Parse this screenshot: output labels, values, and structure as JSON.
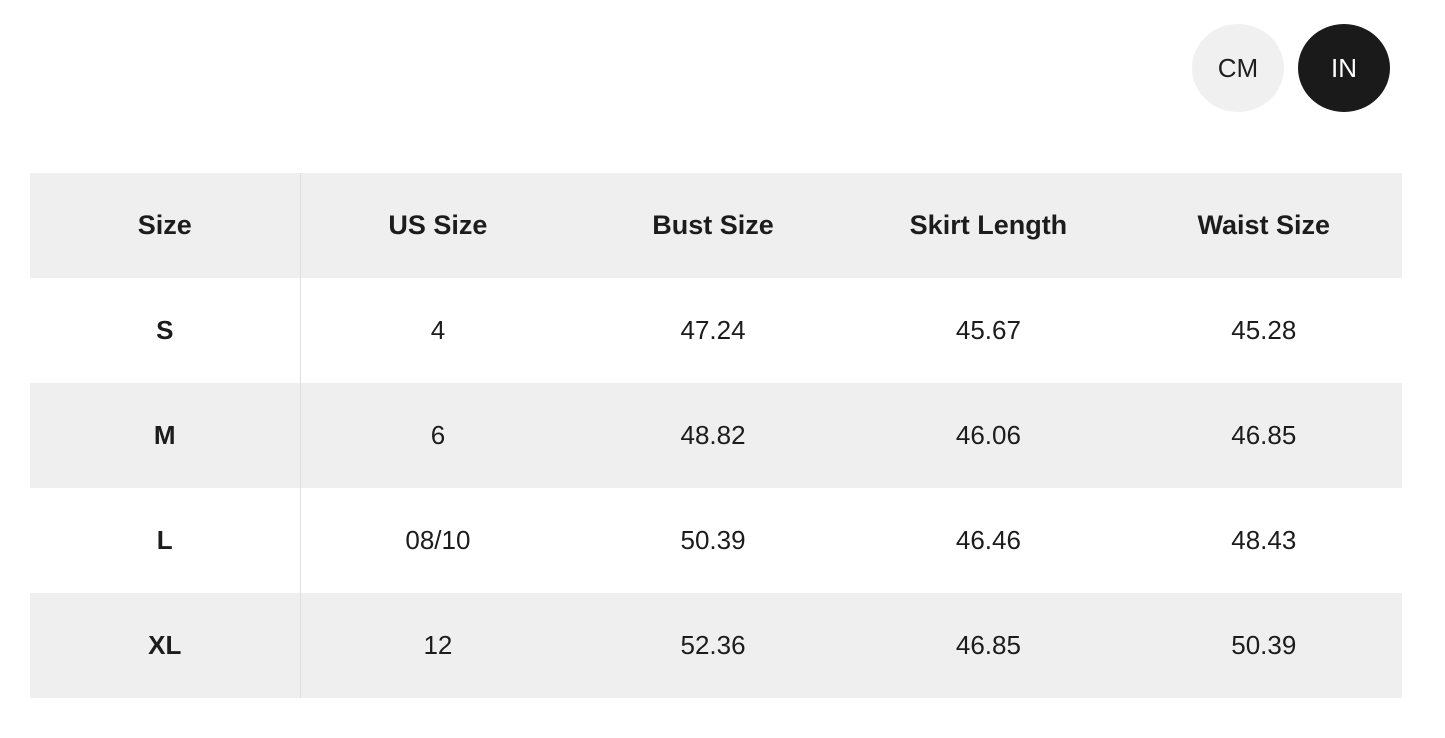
{
  "unit_toggle": {
    "options": [
      {
        "label": "CM",
        "selected": false
      },
      {
        "label": "IN",
        "selected": true
      }
    ]
  },
  "size_chart": {
    "columns": [
      "Size",
      "US Size",
      "Bust Size",
      "Skirt Length",
      "Waist Size"
    ],
    "rows": [
      {
        "size": "S",
        "values": [
          "4",
          "47.24",
          "45.67",
          "45.28"
        ]
      },
      {
        "size": "M",
        "values": [
          "6",
          "48.82",
          "46.06",
          "46.85"
        ]
      },
      {
        "size": "L",
        "values": [
          "08/10",
          "50.39",
          "46.46",
          "48.43"
        ]
      },
      {
        "size": "XL",
        "values": [
          "12",
          "52.36",
          "46.85",
          "50.39"
        ]
      }
    ]
  },
  "colors": {
    "selected_toggle_bg": "#1a1a1a",
    "selected_toggle_text": "#ffffff",
    "unselected_toggle_bg": "#f0f0f0",
    "row_stripe": "#efefef",
    "divider": "#dedede",
    "text": "#1c1c1c"
  }
}
